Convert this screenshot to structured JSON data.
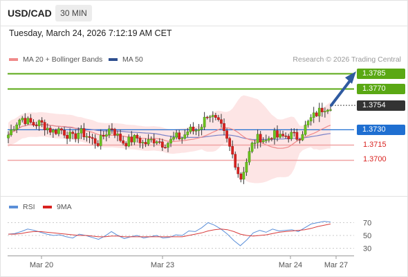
{
  "header": {
    "symbol": "USD/CAD",
    "timeframe": "30 MIN"
  },
  "datetime": "Tuesday, March 24, 2026 7:12:19 AM CET",
  "copyright": "Research © 2026 Trading Central",
  "legend": {
    "ma20_label": "MA 20 + Bollinger Bands",
    "ma50_label": "MA 50"
  },
  "rsi_legend": {
    "rsi_label": "RSI",
    "ma_label": "9MA"
  },
  "colors": {
    "green": "#5aa814",
    "red": "#d9221f",
    "blue": "#1f6fd1",
    "dark": "#333333",
    "bollinger_fill": "#fde0e0",
    "ma20": "#f08a8a",
    "ma50": "#7b82c8",
    "rsi": "#5b8fd8",
    "rsi_ma": "#d83a3a",
    "arrow": "#2f5aa0"
  },
  "price_levels": [
    {
      "value": "1.3785",
      "style": "green-tag"
    },
    {
      "value": "1.3770",
      "style": "green-tag"
    },
    {
      "value": "1.3754",
      "style": "dark-tag"
    },
    {
      "value": "1.3730",
      "style": "blue-tag"
    },
    {
      "value": "1.3715",
      "style": "red-text"
    },
    {
      "value": "1.3700",
      "style": "red-text"
    }
  ],
  "chart_data": [
    {
      "type": "candlestick",
      "title": "USD/CAD",
      "timeframe": "30 MIN",
      "ylim": [
        1.367,
        1.38
      ],
      "x_tick_labels": [
        "Mar 20",
        "Mar 23",
        "Mar 24",
        "Mar 27"
      ],
      "resistance": [
        1.3785,
        1.377
      ],
      "pivot": 1.373,
      "support": [
        1.3715,
        1.37
      ],
      "last_price": 1.3754,
      "series": [
        {
          "name": "MA 20 + Bollinger Bands"
        },
        {
          "name": "MA 50"
        }
      ],
      "close_path": [
        1.3725,
        1.3735,
        1.3742,
        1.3738,
        1.3735,
        1.3737,
        1.3732,
        1.3728,
        1.3731,
        1.3726,
        1.3722,
        1.3728,
        1.3725,
        1.372,
        1.3717,
        1.3726,
        1.3733,
        1.3723,
        1.3717,
        1.372,
        1.3722,
        1.3716,
        1.3719,
        1.3721,
        1.3716,
        1.3718,
        1.3723,
        1.3722,
        1.373,
        1.3729,
        1.3735,
        1.3747,
        1.374,
        1.3733,
        1.3718,
        1.3702,
        1.3681,
        1.37,
        1.3718,
        1.3723,
        1.3719,
        1.3726,
        1.3722,
        1.3724,
        1.3725,
        1.3722,
        1.3732,
        1.3741,
        1.3747,
        1.3752,
        1.3754
      ]
    },
    {
      "type": "line",
      "title": "RSI",
      "series": [
        {
          "name": "RSI",
          "values": [
            52,
            53,
            56,
            60,
            58,
            55,
            52,
            50,
            51,
            48,
            46,
            52,
            50,
            47,
            44,
            49,
            56,
            50,
            45,
            48,
            50,
            46,
            48,
            50,
            46,
            47,
            51,
            50,
            57,
            56,
            62,
            70,
            66,
            60,
            52,
            42,
            34,
            43,
            54,
            58,
            55,
            60,
            57,
            58,
            59,
            56,
            62,
            68,
            70,
            72,
            71
          ]
        },
        {
          "name": "9MA",
          "values": [
            52,
            52,
            53,
            55,
            56,
            56,
            55,
            54,
            53,
            52,
            51,
            50,
            50,
            49,
            48,
            48,
            49,
            49,
            48,
            48,
            48,
            48,
            48,
            48,
            48,
            48,
            48,
            48,
            50,
            52,
            54,
            57,
            59,
            60,
            59,
            56,
            52,
            50,
            49,
            50,
            51,
            53,
            55,
            56,
            57,
            58,
            59,
            61,
            64,
            66,
            68
          ]
        }
      ],
      "ylim": [
        20,
        80
      ],
      "y_ticks": [
        70,
        50,
        30
      ]
    }
  ]
}
